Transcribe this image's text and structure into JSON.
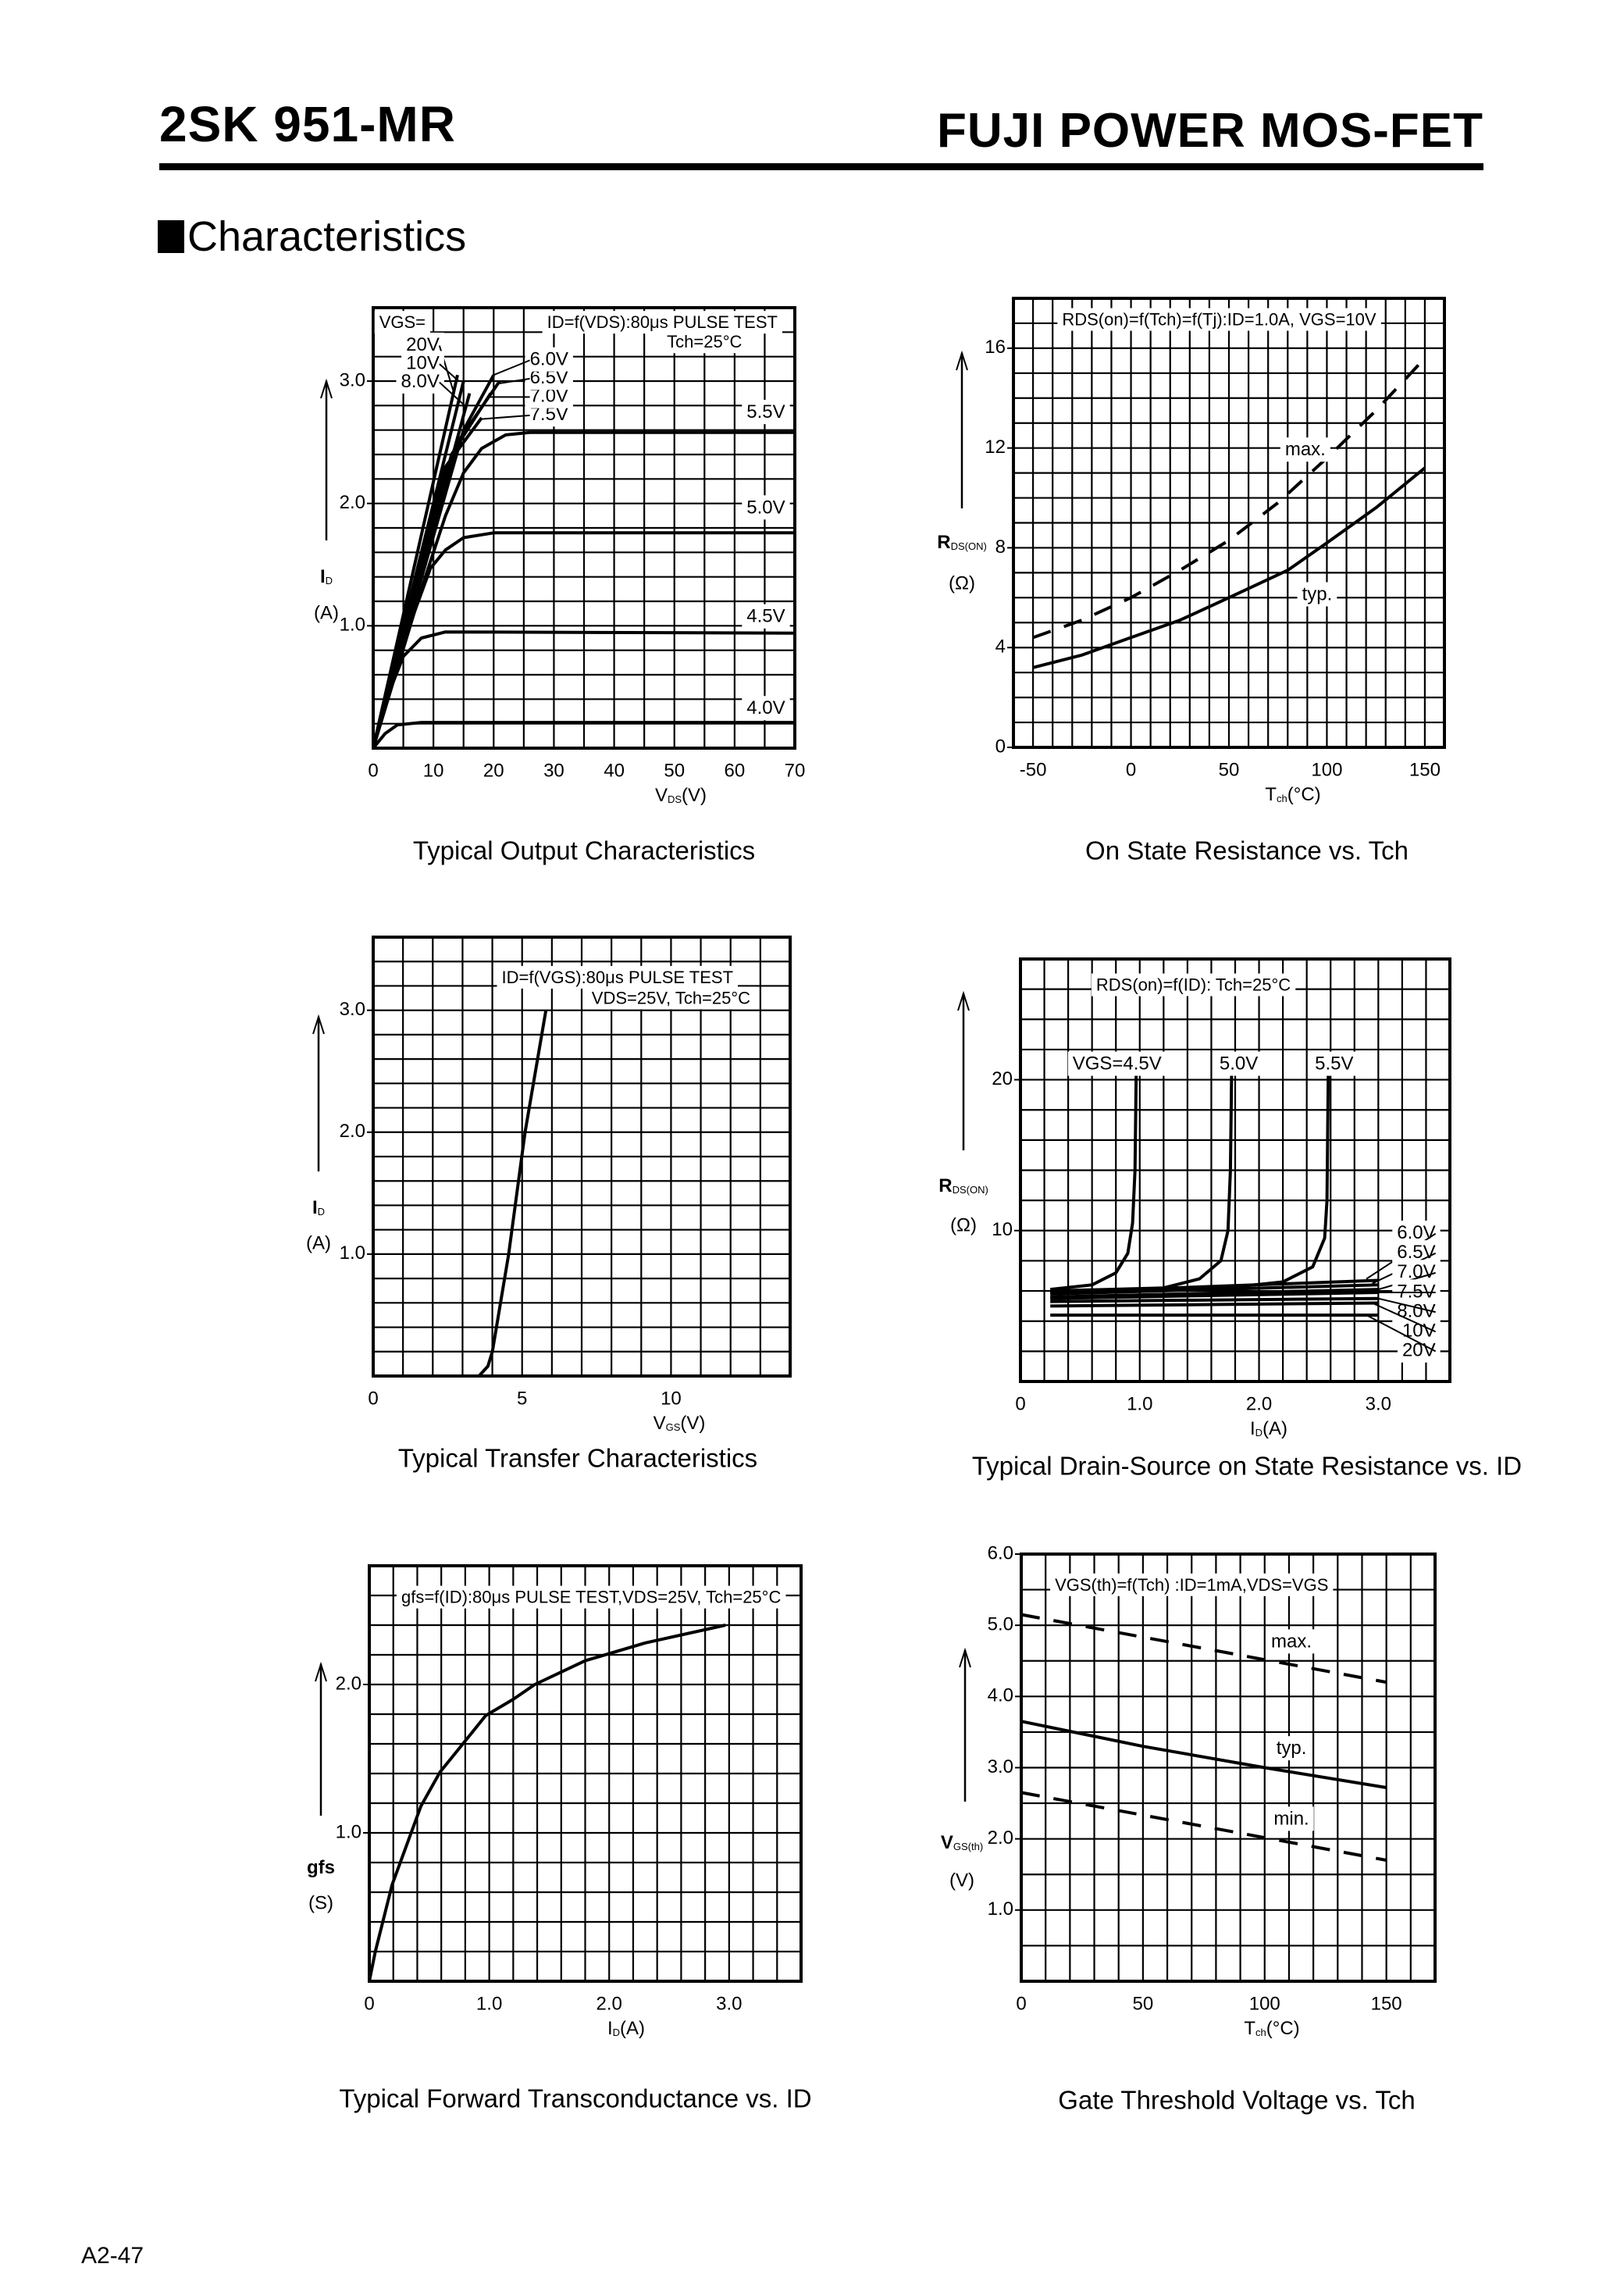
{
  "header": {
    "part_number": "2SK 951-MR",
    "brand": "FUJI POWER MOS-FET"
  },
  "section_title": "Characteristics",
  "footer": {
    "page": "A2-47"
  },
  "colors": {
    "ink": "#000000",
    "paper": "#ffffff"
  },
  "chart_data": [
    {
      "type": "line",
      "title": "Typical Output Characteristics",
      "xlabel": {
        "base": "V",
        "sub": "DS",
        "unit": "(V)"
      },
      "ylabel": {
        "base": "I",
        "sub": "D",
        "unit": "(A)"
      },
      "xlim": [
        0,
        70
      ],
      "ylim": [
        0,
        3.6
      ],
      "grid": true,
      "x_ticks": [
        {
          "value": 0,
          "label": "0"
        },
        {
          "value": 10,
          "label": "10"
        },
        {
          "value": 20,
          "label": "20"
        },
        {
          "value": 30,
          "label": "30"
        },
        {
          "value": 40,
          "label": "40"
        },
        {
          "value": 50,
          "label": "50"
        },
        {
          "value": 60,
          "label": "60"
        },
        {
          "value": 70,
          "label": "70"
        }
      ],
      "y_ticks": [
        {
          "value": 1,
          "label": "1.0"
        },
        {
          "value": 2,
          "label": "2.0"
        },
        {
          "value": 3,
          "label": "3.0"
        }
      ],
      "conditions": [
        "ID=f(VDS):80μs PULSE TEST",
        "Tch=25°C"
      ],
      "annotations": [
        "VGS="
      ],
      "series": [
        {
          "name": "20V",
          "style": "solid",
          "points": [
            [
              0,
              0
            ],
            [
              14,
              3.05
            ]
          ]
        },
        {
          "name": "10V",
          "style": "solid",
          "points": [
            [
              0,
              0
            ],
            [
              15,
              3.0
            ]
          ]
        },
        {
          "name": "8.0V",
          "style": "solid",
          "points": [
            [
              0,
              0
            ],
            [
              16,
              2.9
            ]
          ]
        },
        {
          "name": "7.5V",
          "style": "solid",
          "points": [
            [
              0,
              0
            ],
            [
              12,
              2.3
            ],
            [
              18,
              2.7
            ]
          ]
        },
        {
          "name": "7.0V",
          "style": "solid",
          "points": [
            [
              0,
              0
            ],
            [
              13,
              2.4
            ],
            [
              19.5,
              2.9
            ]
          ]
        },
        {
          "name": "6.5V",
          "style": "solid",
          "points": [
            [
              0,
              0
            ],
            [
              14,
              2.5
            ],
            [
              21,
              3.0
            ]
          ]
        },
        {
          "name": "6.0V",
          "style": "solid",
          "points": [
            [
              0,
              0
            ],
            [
              15,
              2.6
            ],
            [
              20,
              3.05
            ]
          ]
        },
        {
          "name": "5.5V",
          "style": "solid",
          "points": [
            [
              0,
              0
            ],
            [
              8,
              1.3
            ],
            [
              12,
              1.9
            ],
            [
              15,
              2.25
            ],
            [
              18,
              2.45
            ],
            [
              22,
              2.56
            ],
            [
              26,
              2.58
            ],
            [
              70,
              2.58
            ]
          ]
        },
        {
          "name": "5.0V",
          "style": "solid",
          "points": [
            [
              0,
              0
            ],
            [
              6,
              1.0
            ],
            [
              9.5,
              1.47
            ],
            [
              12,
              1.62
            ],
            [
              15,
              1.72
            ],
            [
              20,
              1.76
            ],
            [
              70,
              1.76
            ]
          ]
        },
        {
          "name": "4.5V",
          "style": "solid",
          "points": [
            [
              0,
              0
            ],
            [
              3,
              0.5
            ],
            [
              5,
              0.75
            ],
            [
              8,
              0.9
            ],
            [
              12,
              0.95
            ],
            [
              70,
              0.94
            ]
          ]
        },
        {
          "name": "4.0V",
          "style": "solid",
          "points": [
            [
              0,
              0
            ],
            [
              2,
              0.12
            ],
            [
              4,
              0.19
            ],
            [
              8,
              0.21
            ],
            [
              70,
              0.21
            ]
          ]
        }
      ]
    },
    {
      "type": "line",
      "title": "On State Resistance vs. Tch",
      "xlabel": {
        "base": "T",
        "sub": "ch",
        "unit": "(°C)"
      },
      "ylabel": {
        "base": "R",
        "sub": "DS(ON)",
        "unit": "(Ω)"
      },
      "xlim": [
        -60,
        160
      ],
      "ylim": [
        0,
        18
      ],
      "grid": true,
      "x_ticks": [
        {
          "value": -50,
          "label": "-50"
        },
        {
          "value": 0,
          "label": "0"
        },
        {
          "value": 50,
          "label": "50"
        },
        {
          "value": 100,
          "label": "100"
        },
        {
          "value": 150,
          "label": "150"
        }
      ],
      "y_ticks": [
        {
          "value": 0,
          "label": "0"
        },
        {
          "value": 4,
          "label": "4"
        },
        {
          "value": 8,
          "label": "8"
        },
        {
          "value": 12,
          "label": "12"
        },
        {
          "value": 16,
          "label": "16"
        }
      ],
      "conditions": [
        "RDS(on)=f(Tch)=f(Tj):ID=1.0A, VGS=10V"
      ],
      "annotations": [],
      "series": [
        {
          "name": "max.",
          "style": "dashed",
          "points": [
            [
              -50,
              4.4
            ],
            [
              -25,
              5.1
            ],
            [
              0,
              6.0
            ],
            [
              25,
              7.1
            ],
            [
              50,
              8.3
            ],
            [
              75,
              9.8
            ],
            [
              100,
              11.6
            ],
            [
              125,
              13.5
            ],
            [
              150,
              15.6
            ]
          ]
        },
        {
          "name": "typ.",
          "style": "solid",
          "points": [
            [
              -50,
              3.2
            ],
            [
              -25,
              3.7
            ],
            [
              0,
              4.4
            ],
            [
              25,
              5.1
            ],
            [
              50,
              6.0
            ],
            [
              80,
              7.1
            ],
            [
              100,
              8.2
            ],
            [
              125,
              9.6
            ],
            [
              150,
              11.2
            ]
          ]
        }
      ]
    },
    {
      "type": "line",
      "title": "Typical Transfer Characteristics",
      "xlabel": {
        "base": "V",
        "sub": "GS",
        "unit": "(V)"
      },
      "ylabel": {
        "base": "I",
        "sub": "D",
        "unit": "(A)"
      },
      "xlim": [
        0,
        14
      ],
      "ylim": [
        0,
        3.6
      ],
      "grid": true,
      "x_ticks": [
        {
          "value": 0,
          "label": "0"
        },
        {
          "value": 5,
          "label": "5"
        },
        {
          "value": 10,
          "label": "10"
        }
      ],
      "y_ticks": [
        {
          "value": 1,
          "label": "1.0"
        },
        {
          "value": 2,
          "label": "2.0"
        },
        {
          "value": 3,
          "label": "3.0"
        }
      ],
      "conditions": [
        "ID=f(VGS):80μs PULSE TEST",
        "VDS=25V, Tch=25°C"
      ],
      "annotations": [],
      "series": [
        {
          "style": "solid",
          "points": [
            [
              3.55,
              0
            ],
            [
              3.85,
              0.08
            ],
            [
              4.0,
              0.2
            ],
            [
              4.55,
              1.0
            ],
            [
              5.1,
              2.0
            ],
            [
              5.8,
              3.0
            ]
          ]
        }
      ]
    },
    {
      "type": "line",
      "title": "Typical Drain-Source on State Resistance vs. ID",
      "xlabel": {
        "base": "I",
        "sub": "D",
        "unit": "(A)"
      },
      "ylabel": {
        "base": "R",
        "sub": "DS(ON)",
        "unit": "(Ω)"
      },
      "xlim": [
        0,
        3.6
      ],
      "ylim": [
        0,
        28
      ],
      "grid": true,
      "x_ticks": [
        {
          "value": 0,
          "label": "0"
        },
        {
          "value": 1,
          "label": "1.0"
        },
        {
          "value": 2,
          "label": "2.0"
        },
        {
          "value": 3,
          "label": "3.0"
        }
      ],
      "y_ticks": [
        {
          "value": 10,
          "label": "10"
        },
        {
          "value": 20,
          "label": "20"
        }
      ],
      "conditions": [
        "RDS(on)=f(ID): Tch=25°C"
      ],
      "annotations": [],
      "series": [
        {
          "name": "VGS=4.5V",
          "style": "solid",
          "points": [
            [
              0.25,
              6.1
            ],
            [
              0.6,
              6.4
            ],
            [
              0.8,
              7.2
            ],
            [
              0.9,
              8.5
            ],
            [
              0.94,
              10.5
            ],
            [
              0.96,
              14
            ],
            [
              0.97,
              20.3
            ]
          ]
        },
        {
          "name": "5.0V",
          "style": "solid",
          "points": [
            [
              0.25,
              6.0
            ],
            [
              1.2,
              6.2
            ],
            [
              1.5,
              6.8
            ],
            [
              1.68,
              8
            ],
            [
              1.74,
              10
            ],
            [
              1.76,
              14
            ],
            [
              1.77,
              20.3
            ]
          ]
        },
        {
          "name": "5.5V",
          "style": "solid",
          "points": [
            [
              0.25,
              5.9
            ],
            [
              1.6,
              6.1
            ],
            [
              2.2,
              6.6
            ],
            [
              2.45,
              7.6
            ],
            [
              2.55,
              9.5
            ],
            [
              2.57,
              12
            ],
            [
              2.58,
              20.3
            ]
          ]
        },
        {
          "name": "6.0V",
          "style": "solid",
          "points": [
            [
              0.25,
              5.9
            ],
            [
              3.0,
              6.7
            ]
          ]
        },
        {
          "name": "6.5V",
          "style": "solid",
          "points": [
            [
              0.25,
              5.8
            ],
            [
              3.0,
              6.4
            ]
          ]
        },
        {
          "name": "7.0V",
          "style": "solid",
          "points": [
            [
              0.25,
              5.6
            ],
            [
              3.0,
              6.1
            ]
          ]
        },
        {
          "name": "7.5V",
          "style": "solid",
          "points": [
            [
              0.25,
              5.5
            ],
            [
              3.0,
              5.9
            ]
          ]
        },
        {
          "name": "8.0V",
          "style": "solid",
          "points": [
            [
              0.25,
              5.3
            ],
            [
              3.0,
              5.5
            ]
          ]
        },
        {
          "name": "10V",
          "style": "solid",
          "points": [
            [
              0.25,
              5.0
            ],
            [
              3.0,
              5.2
            ]
          ]
        },
        {
          "name": "20V",
          "style": "solid",
          "points": [
            [
              0.25,
              4.4
            ],
            [
              3.0,
              4.4
            ]
          ]
        }
      ]
    },
    {
      "type": "line",
      "title": "Typical Forward Transconductance vs. ID",
      "xlabel": {
        "base": "I",
        "sub": "D",
        "unit": "(A)"
      },
      "ylabel": {
        "base": "gfs",
        "sub": "",
        "unit": "(S)"
      },
      "xlim": [
        0,
        3.6
      ],
      "ylim": [
        0,
        2.8
      ],
      "grid": true,
      "x_ticks": [
        {
          "value": 0,
          "label": "0"
        },
        {
          "value": 1,
          "label": "1.0"
        },
        {
          "value": 2,
          "label": "2.0"
        },
        {
          "value": 3,
          "label": "3.0"
        }
      ],
      "y_ticks": [
        {
          "value": 1,
          "label": "1.0"
        },
        {
          "value": 2,
          "label": "2.0"
        }
      ],
      "conditions": [
        "gfs=f(ID):80μs PULSE TEST,VDS=25V, Tch=25°C"
      ],
      "annotations": [],
      "series": [
        {
          "style": "solid",
          "points": [
            [
              0,
              0
            ],
            [
              0.05,
              0.2
            ],
            [
              0.19,
              0.65
            ],
            [
              0.43,
              1.18
            ],
            [
              0.59,
              1.41
            ],
            [
              0.8,
              1.62
            ],
            [
              0.97,
              1.79
            ],
            [
              1.2,
              1.9
            ],
            [
              1.38,
              2.0
            ],
            [
              1.8,
              2.16
            ],
            [
              2.3,
              2.28
            ],
            [
              2.97,
              2.4
            ]
          ]
        }
      ]
    },
    {
      "type": "line",
      "title": "Gate Threshold Voltage vs. Tch",
      "xlabel": {
        "base": "T",
        "sub": "ch",
        "unit": "(°C)"
      },
      "ylabel": {
        "base": "V",
        "sub": "GS(th)",
        "unit": "(V)"
      },
      "xlim": [
        0,
        170
      ],
      "ylim": [
        0,
        6
      ],
      "grid": true,
      "x_ticks": [
        {
          "value": 0,
          "label": "0"
        },
        {
          "value": 50,
          "label": "50"
        },
        {
          "value": 100,
          "label": "100"
        },
        {
          "value": 150,
          "label": "150"
        }
      ],
      "y_ticks": [
        {
          "value": 1,
          "label": "1.0"
        },
        {
          "value": 2,
          "label": "2.0"
        },
        {
          "value": 3,
          "label": "3.0"
        },
        {
          "value": 4,
          "label": "4.0"
        },
        {
          "value": 5,
          "label": "5.0"
        },
        {
          "value": 6,
          "label": "6.0"
        }
      ],
      "conditions": [
        "VGS(th)=f(Tch) :ID=1mA,VDS=VGS"
      ],
      "annotations": [],
      "series": [
        {
          "name": "max.",
          "style": "dashed",
          "points": [
            [
              0,
              5.15
            ],
            [
              150,
              4.2
            ]
          ]
        },
        {
          "name": "typ.",
          "style": "solid",
          "points": [
            [
              0,
              3.65
            ],
            [
              50,
              3.3
            ],
            [
              100,
              3.0
            ],
            [
              150,
              2.72
            ]
          ]
        },
        {
          "name": "min.",
          "style": "dashed",
          "points": [
            [
              0,
              2.65
            ],
            [
              150,
              1.7
            ]
          ]
        }
      ]
    }
  ]
}
